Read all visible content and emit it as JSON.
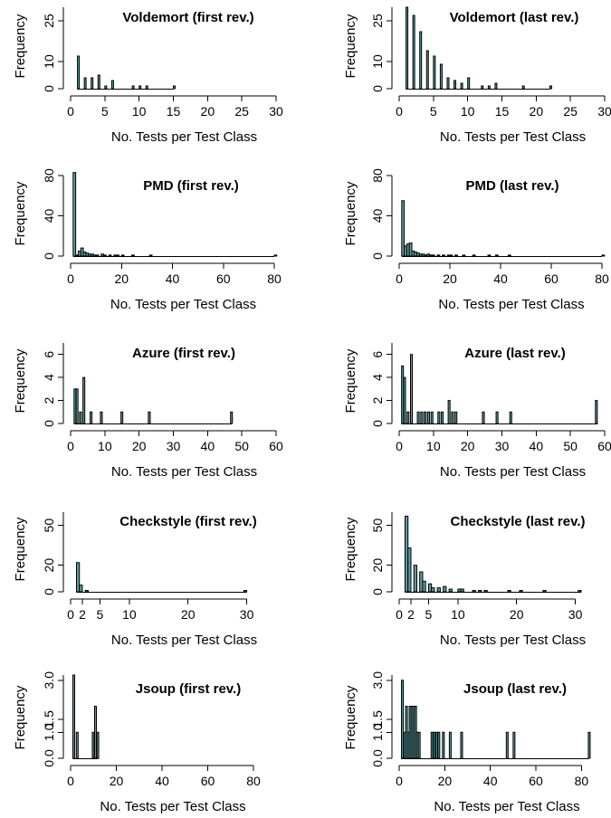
{
  "colors": {
    "bar_fill": "#5f9ea0",
    "axis": "#000000",
    "background": "#ffffff"
  },
  "chart_data": [
    {
      "type": "bar",
      "id": "voldemort-first",
      "title": "Voldemort (first rev.)",
      "xlabel": "No. Tests per Test Class",
      "ylabel": "Frequency",
      "xlim": [
        0,
        30
      ],
      "ylim": [
        0,
        30
      ],
      "x_ticks": [
        0,
        5,
        10,
        15,
        20,
        25,
        30
      ],
      "y_ticks": [
        0,
        10,
        25
      ],
      "x_tick_labels": [
        "0",
        "5",
        "10",
        "15",
        "20",
        "25",
        "30"
      ],
      "y_tick_labels": [
        "0",
        "10",
        "25"
      ],
      "bin_width": 0.25,
      "bins": [
        {
          "x": 1,
          "count": 12
        },
        {
          "x": 2,
          "count": 4
        },
        {
          "x": 3,
          "count": 4
        },
        {
          "x": 4,
          "count": 5
        },
        {
          "x": 5,
          "count": 1
        },
        {
          "x": 6,
          "count": 3
        },
        {
          "x": 9,
          "count": 1
        },
        {
          "x": 10,
          "count": 1
        },
        {
          "x": 11,
          "count": 1
        },
        {
          "x": 15,
          "count": 1
        }
      ],
      "baseline_to": 15
    },
    {
      "type": "bar",
      "id": "voldemort-last",
      "title": "Voldemort (last rev.)",
      "xlabel": "No. Tests per Test Class",
      "ylabel": "Frequency",
      "xlim": [
        0,
        30
      ],
      "ylim": [
        0,
        30
      ],
      "x_ticks": [
        0,
        5,
        10,
        15,
        20,
        25,
        30
      ],
      "y_ticks": [
        0,
        10,
        25
      ],
      "x_tick_labels": [
        "0",
        "5",
        "10",
        "15",
        "20",
        "25",
        "30"
      ],
      "y_tick_labels": [
        "0",
        "10",
        "25"
      ],
      "bin_width": 0.25,
      "bins": [
        {
          "x": 1,
          "count": 30
        },
        {
          "x": 2,
          "count": 27
        },
        {
          "x": 3,
          "count": 21
        },
        {
          "x": 4,
          "count": 14
        },
        {
          "x": 5,
          "count": 12
        },
        {
          "x": 6,
          "count": 9
        },
        {
          "x": 7,
          "count": 4
        },
        {
          "x": 8,
          "count": 3
        },
        {
          "x": 9,
          "count": 2
        },
        {
          "x": 10,
          "count": 4
        },
        {
          "x": 12,
          "count": 1
        },
        {
          "x": 13,
          "count": 1
        },
        {
          "x": 14,
          "count": 2
        },
        {
          "x": 18,
          "count": 1
        },
        {
          "x": 22,
          "count": 1
        }
      ],
      "baseline_to": 22
    },
    {
      "type": "bar",
      "id": "pmd-first",
      "title": "PMD (first rev.)",
      "xlabel": "No. Tests per Test Class",
      "ylabel": "Frequency",
      "xlim": [
        0,
        80
      ],
      "ylim": [
        0,
        80
      ],
      "x_ticks": [
        0,
        20,
        40,
        60,
        80
      ],
      "y_ticks": [
        0,
        40,
        80
      ],
      "x_tick_labels": [
        "0",
        "20",
        "40",
        "60",
        "80"
      ],
      "y_tick_labels": [
        "0",
        "40",
        "80"
      ],
      "bin_width": 1,
      "bins": [
        {
          "x": 1,
          "count": 83
        },
        {
          "x": 2,
          "count": 1
        },
        {
          "x": 3,
          "count": 5
        },
        {
          "x": 4,
          "count": 8
        },
        {
          "x": 5,
          "count": 4
        },
        {
          "x": 6,
          "count": 3
        },
        {
          "x": 7,
          "count": 2
        },
        {
          "x": 8,
          "count": 2
        },
        {
          "x": 9,
          "count": 1
        },
        {
          "x": 10,
          "count": 1
        },
        {
          "x": 12,
          "count": 2
        },
        {
          "x": 13,
          "count": 1
        },
        {
          "x": 15,
          "count": 1
        },
        {
          "x": 17,
          "count": 1
        },
        {
          "x": 18,
          "count": 1
        },
        {
          "x": 20,
          "count": 1
        },
        {
          "x": 24,
          "count": 1
        },
        {
          "x": 31,
          "count": 1
        },
        {
          "x": 80,
          "count": 1
        }
      ],
      "baseline_to": 80
    },
    {
      "type": "bar",
      "id": "pmd-last",
      "title": "PMD (last rev.)",
      "xlabel": "No. Tests per Test Class",
      "ylabel": "Frequency",
      "xlim": [
        0,
        80
      ],
      "ylim": [
        0,
        80
      ],
      "x_ticks": [
        0,
        20,
        40,
        60,
        80
      ],
      "y_ticks": [
        0,
        40,
        80
      ],
      "x_tick_labels": [
        "0",
        "20",
        "40",
        "60",
        "80"
      ],
      "y_tick_labels": [
        "0",
        "40",
        "80"
      ],
      "bin_width": 1,
      "bins": [
        {
          "x": 1,
          "count": 55
        },
        {
          "x": 2,
          "count": 10
        },
        {
          "x": 3,
          "count": 12
        },
        {
          "x": 4,
          "count": 13
        },
        {
          "x": 5,
          "count": 5
        },
        {
          "x": 6,
          "count": 4
        },
        {
          "x": 7,
          "count": 3
        },
        {
          "x": 8,
          "count": 2
        },
        {
          "x": 9,
          "count": 2
        },
        {
          "x": 10,
          "count": 1
        },
        {
          "x": 11,
          "count": 2
        },
        {
          "x": 12,
          "count": 1
        },
        {
          "x": 13,
          "count": 1
        },
        {
          "x": 15,
          "count": 1
        },
        {
          "x": 17,
          "count": 1
        },
        {
          "x": 19,
          "count": 1
        },
        {
          "x": 20,
          "count": 1
        },
        {
          "x": 22,
          "count": 1
        },
        {
          "x": 25,
          "count": 1
        },
        {
          "x": 29,
          "count": 1
        },
        {
          "x": 35,
          "count": 1
        },
        {
          "x": 38,
          "count": 1
        },
        {
          "x": 43,
          "count": 1
        },
        {
          "x": 80,
          "count": 1
        }
      ],
      "baseline_to": 80
    },
    {
      "type": "bar",
      "id": "azure-first",
      "title": "Azure (first rev.)",
      "xlabel": "No. Tests per Test Class",
      "ylabel": "Frequency",
      "xlim": [
        0,
        60
      ],
      "ylim": [
        0,
        7
      ],
      "x_ticks": [
        0,
        10,
        20,
        30,
        40,
        50,
        60
      ],
      "y_ticks": [
        0,
        2,
        4,
        6
      ],
      "x_tick_labels": [
        "0",
        "10",
        "20",
        "30",
        "40",
        "50",
        "60"
      ],
      "y_tick_labels": [
        "0",
        "2",
        "4",
        "6"
      ],
      "bin_width": 0.55,
      "bins": [
        {
          "x": 1,
          "count": 3
        },
        {
          "x": 1.6,
          "count": 3
        },
        {
          "x": 2.6,
          "count": 1
        },
        {
          "x": 3.6,
          "count": 4
        },
        {
          "x": 5.7,
          "count": 1
        },
        {
          "x": 8.7,
          "count": 1
        },
        {
          "x": 14.7,
          "count": 1
        },
        {
          "x": 22.7,
          "count": 1
        },
        {
          "x": 46.7,
          "count": 1
        }
      ],
      "baseline_to": 47
    },
    {
      "type": "bar",
      "id": "azure-last",
      "title": "Azure (last rev.)",
      "xlabel": "No. Tests per Test Class",
      "ylabel": "Frequency",
      "xlim": [
        0,
        60
      ],
      "ylim": [
        0,
        7
      ],
      "x_ticks": [
        0,
        10,
        20,
        30,
        40,
        50,
        60
      ],
      "y_ticks": [
        0,
        2,
        4,
        6
      ],
      "x_tick_labels": [
        "0",
        "10",
        "20",
        "30",
        "40",
        "50",
        "60"
      ],
      "y_tick_labels": [
        "0",
        "2",
        "4",
        "6"
      ],
      "bin_width": 0.55,
      "bins": [
        {
          "x": 0.7,
          "count": 5
        },
        {
          "x": 1.3,
          "count": 4
        },
        {
          "x": 2.3,
          "count": 1
        },
        {
          "x": 3.3,
          "count": 6
        },
        {
          "x": 5.3,
          "count": 1
        },
        {
          "x": 6.3,
          "count": 1
        },
        {
          "x": 7.3,
          "count": 1
        },
        {
          "x": 8.3,
          "count": 1
        },
        {
          "x": 9.3,
          "count": 1
        },
        {
          "x": 11.3,
          "count": 1
        },
        {
          "x": 12.3,
          "count": 1
        },
        {
          "x": 14.3,
          "count": 2
        },
        {
          "x": 15.3,
          "count": 1
        },
        {
          "x": 16.3,
          "count": 1
        },
        {
          "x": 24.3,
          "count": 1
        },
        {
          "x": 28.3,
          "count": 1
        },
        {
          "x": 32.3,
          "count": 1
        },
        {
          "x": 57.3,
          "count": 2
        }
      ],
      "baseline_to": 58
    },
    {
      "type": "bar",
      "id": "checkstyle-first",
      "title": "Checkstyle (first rev.)",
      "xlabel": "No. Tests per Test Class",
      "ylabel": "Frequency",
      "xlim": [
        0,
        35
      ],
      "ylim": [
        0,
        60
      ],
      "x_ticks": [
        0,
        2,
        5,
        10,
        20,
        30
      ],
      "y_ticks": [
        0,
        20,
        50
      ],
      "x_tick_labels": [
        "0",
        "2",
        "5",
        "10",
        "20",
        "30"
      ],
      "y_tick_labels": [
        "0",
        "20",
        "50"
      ],
      "bin_width": 0.5,
      "bins": [
        {
          "x": 1,
          "count": 22
        },
        {
          "x": 1.5,
          "count": 5
        },
        {
          "x": 2.5,
          "count": 1
        },
        {
          "x": 29.5,
          "count": 1
        }
      ],
      "baseline_to": 30
    },
    {
      "type": "bar",
      "id": "checkstyle-last",
      "title": "Checkstyle (last rev.)",
      "xlabel": "No. Tests per Test Class",
      "ylabel": "Frequency",
      "xlim": [
        0,
        35
      ],
      "ylim": [
        0,
        60
      ],
      "x_ticks": [
        0,
        2,
        5,
        10,
        20,
        30
      ],
      "y_ticks": [
        0,
        20,
        50
      ],
      "x_tick_labels": [
        "0",
        "2",
        "5",
        "10",
        "20",
        "30"
      ],
      "y_tick_labels": [
        "0",
        "20",
        "50"
      ],
      "bin_width": 0.5,
      "bins": [
        {
          "x": 1,
          "count": 57
        },
        {
          "x": 1.5,
          "count": 33
        },
        {
          "x": 2.5,
          "count": 20
        },
        {
          "x": 3.5,
          "count": 15
        },
        {
          "x": 4,
          "count": 8
        },
        {
          "x": 5,
          "count": 6
        },
        {
          "x": 5.5,
          "count": 3
        },
        {
          "x": 6.5,
          "count": 3
        },
        {
          "x": 7.5,
          "count": 4
        },
        {
          "x": 8.5,
          "count": 2
        },
        {
          "x": 10,
          "count": 2
        },
        {
          "x": 10.5,
          "count": 2
        },
        {
          "x": 12.5,
          "count": 1
        },
        {
          "x": 13.5,
          "count": 1
        },
        {
          "x": 14.5,
          "count": 1
        },
        {
          "x": 18.5,
          "count": 1
        },
        {
          "x": 20.5,
          "count": 1
        },
        {
          "x": 24.5,
          "count": 1
        },
        {
          "x": 30.5,
          "count": 1
        }
      ],
      "baseline_to": 31
    },
    {
      "type": "bar",
      "id": "jsoup-first",
      "title": "Jsoup (first rev.)",
      "xlabel": "No. Tests per Test Class",
      "ylabel": "Frequency",
      "xlim": [
        0,
        80
      ],
      "ylim": [
        0,
        3.2
      ],
      "x_ticks": [
        0,
        20,
        40,
        60,
        80
      ],
      "y_ticks": [
        0,
        1,
        1.5,
        3
      ],
      "x_tick_labels": [
        "0",
        "20",
        "40",
        "60",
        "80"
      ],
      "y_tick_labels": [
        "0.0",
        "1.0",
        "1.5",
        "3.0"
      ],
      "bin_width": 0.5,
      "bins": [
        {
          "x": 1,
          "count": 3.2
        },
        {
          "x": 2.5,
          "count": 1
        },
        {
          "x": 9.5,
          "count": 1
        },
        {
          "x": 10.5,
          "count": 2
        },
        {
          "x": 11.5,
          "count": 1
        }
      ],
      "baseline_to": 12
    },
    {
      "type": "bar",
      "id": "jsoup-last",
      "title": "Jsoup (last rev.)",
      "xlabel": "No. Tests per Test Class",
      "ylabel": "Frequency",
      "xlim": [
        0,
        85
      ],
      "ylim": [
        0,
        3.2
      ],
      "x_ticks": [
        0,
        20,
        40,
        60,
        80
      ],
      "y_ticks": [
        0,
        1,
        1.5,
        3
      ],
      "x_tick_labels": [
        "0",
        "20",
        "40",
        "60",
        "80"
      ],
      "y_tick_labels": [
        "0.0",
        "1.0",
        "1.5",
        "3.0"
      ],
      "bin_width": 0.8,
      "bins": [
        {
          "x": 1,
          "count": 3
        },
        {
          "x": 2,
          "count": 1
        },
        {
          "x": 2.8,
          "count": 2
        },
        {
          "x": 3.6,
          "count": 1
        },
        {
          "x": 4.4,
          "count": 2
        },
        {
          "x": 5.2,
          "count": 2
        },
        {
          "x": 6,
          "count": 2
        },
        {
          "x": 6.8,
          "count": 2
        },
        {
          "x": 7.6,
          "count": 1
        },
        {
          "x": 8.4,
          "count": 1
        },
        {
          "x": 14,
          "count": 1
        },
        {
          "x": 15,
          "count": 1
        },
        {
          "x": 16,
          "count": 1
        },
        {
          "x": 17,
          "count": 1
        },
        {
          "x": 19,
          "count": 1
        },
        {
          "x": 22,
          "count": 1
        },
        {
          "x": 27,
          "count": 1
        },
        {
          "x": 47,
          "count": 1
        },
        {
          "x": 50,
          "count": 1
        },
        {
          "x": 83,
          "count": 1
        }
      ],
      "baseline_to": 83
    }
  ]
}
